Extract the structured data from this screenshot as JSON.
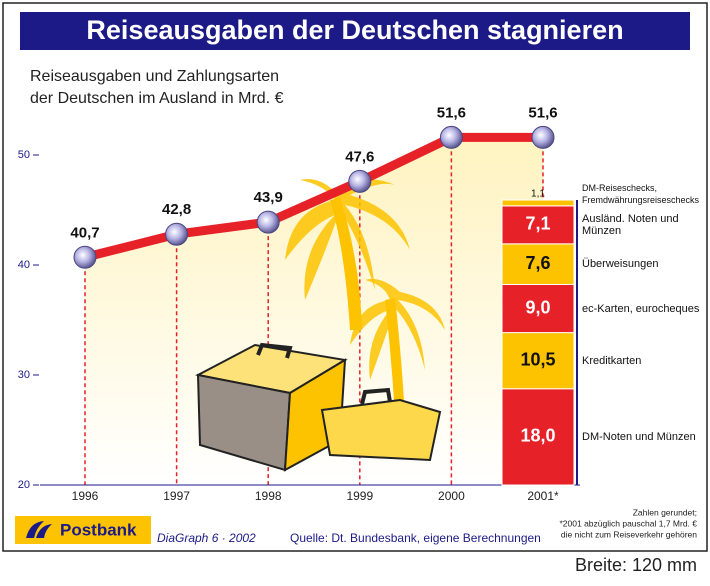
{
  "title": "Reiseausgaben der Deutschen stagnieren",
  "subtitle": [
    "Reiseausgaben und Zahlungsarten",
    "der Deutschen im Ausland in Mrd. €"
  ],
  "chart_data": [
    {
      "type": "line",
      "categories": [
        "1996",
        "1997",
        "1998",
        "1999",
        "2000",
        "2001*"
      ],
      "values": [
        40.7,
        42.8,
        43.9,
        47.6,
        51.6,
        51.6
      ],
      "value_labels": [
        "40,7",
        "42,8",
        "43,9",
        "47,6",
        "51,6",
        "51,6"
      ],
      "color": "#e62128",
      "ylim": [
        20,
        55
      ],
      "yticks": [
        20,
        30,
        40,
        50
      ]
    },
    {
      "type": "stacked-bar",
      "series": [
        {
          "name": "DM-Noten und Münzen",
          "color": "#e62128",
          "values": [
            18.0
          ],
          "value_labels": [
            "18,0"
          ]
        },
        {
          "name": "Kreditkarten",
          "color": "#fdc300",
          "values": [
            10.5
          ],
          "value_labels": [
            "10,5"
          ]
        },
        {
          "name": "ec-Karten, eurocheques",
          "color": "#e62128",
          "values": [
            9.0
          ],
          "value_labels": [
            "9,0"
          ]
        },
        {
          "name": "Überweisungen",
          "color": "#fdc300",
          "values": [
            7.6
          ],
          "value_labels": [
            "7,6"
          ]
        },
        {
          "name": "Ausländ. Noten und Münzen",
          "color": "#e62128",
          "values": [
            7.1
          ],
          "value_labels": [
            "7,1"
          ]
        },
        {
          "name": "DM-Reiseschecks, Fremdwährungsreiseschecks",
          "color": "#fdc300",
          "values": [
            1.1
          ],
          "value_labels": [
            "1,1"
          ]
        }
      ]
    }
  ],
  "notes": [
    "Zahlen gerundet;",
    "*2001 abzüglich pauschal 1,7 Mrd. €",
    "die nicht zum Reiseverkehr gehören"
  ],
  "footer": {
    "logo": "Postbank",
    "credit": "DiaGraph 6 · 2002",
    "source": "Quelle: Dt. Bundesbank, eigene Berechnungen",
    "size": "Breite: 120 mm"
  }
}
